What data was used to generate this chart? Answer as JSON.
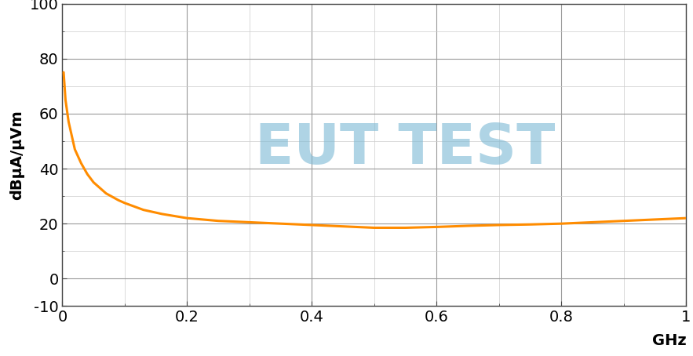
{
  "title": "",
  "ylabel": "dBµA/µVm",
  "xlabel": "GHz",
  "xlim": [
    0,
    1.0
  ],
  "ylim": [
    -10,
    100
  ],
  "yticks": [
    -10,
    0,
    20,
    40,
    60,
    80,
    100
  ],
  "xticks": [
    0,
    0.2,
    0.4,
    0.6,
    0.8,
    1.0
  ],
  "line_color": "#FF8C00",
  "line_width": 2.2,
  "background_color": "#ffffff",
  "grid_major_color": "#999999",
  "grid_minor_color": "#cccccc",
  "watermark_text": "EUT TEST",
  "watermark_color": "#7BB8D4",
  "watermark_alpha": 0.6,
  "curve_x": [
    0.002,
    0.005,
    0.01,
    0.015,
    0.02,
    0.03,
    0.04,
    0.05,
    0.07,
    0.09,
    0.1,
    0.13,
    0.16,
    0.2,
    0.25,
    0.3,
    0.35,
    0.4,
    0.45,
    0.5,
    0.55,
    0.6,
    0.65,
    0.7,
    0.75,
    0.8,
    0.85,
    0.9,
    0.95,
    1.0
  ],
  "curve_y": [
    75,
    65,
    57,
    52,
    47,
    42,
    38,
    35,
    31,
    28.5,
    27.5,
    25,
    23.5,
    22,
    21,
    20.5,
    20,
    19.5,
    19,
    18.5,
    18.5,
    18.8,
    19.2,
    19.5,
    19.7,
    20.0,
    20.5,
    21.0,
    21.5,
    22.0
  ],
  "ylabel_fontsize": 14,
  "xlabel_fontsize": 14,
  "tick_fontsize": 14
}
